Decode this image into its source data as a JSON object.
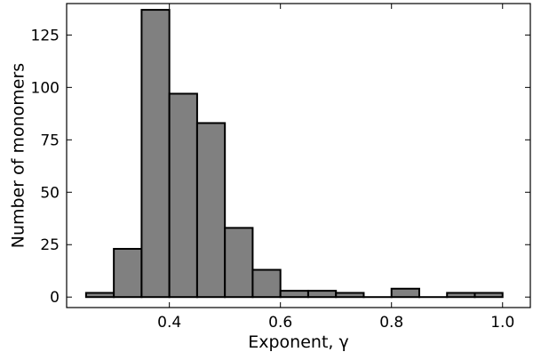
{
  "chart_data": {
    "type": "bar",
    "title": "",
    "xlabel": "Exponent, γ",
    "ylabel": "Number of monomers",
    "xlim": [
      0.215,
      1.05
    ],
    "ylim": [
      -5,
      140
    ],
    "grid": false,
    "x_ticks": [
      0.4,
      0.6,
      0.8,
      1.0
    ],
    "x_tick_labels": [
      "0.4",
      "0.6",
      "0.8",
      "1.0"
    ],
    "y_ticks": [
      0,
      25,
      50,
      75,
      100,
      125
    ],
    "y_tick_labels": [
      "0",
      "25",
      "50",
      "75",
      "100",
      "125"
    ],
    "bin_edges": [
      0.25,
      0.3,
      0.35,
      0.4,
      0.45,
      0.5,
      0.55,
      0.6,
      0.65,
      0.7,
      0.75,
      0.8,
      0.85,
      0.9,
      0.95,
      1.0
    ],
    "values": [
      2,
      23,
      137,
      97,
      83,
      33,
      13,
      3,
      3,
      2,
      0,
      4,
      0,
      2,
      2
    ],
    "bar_color": "#808080",
    "edge_color": "#000000"
  }
}
